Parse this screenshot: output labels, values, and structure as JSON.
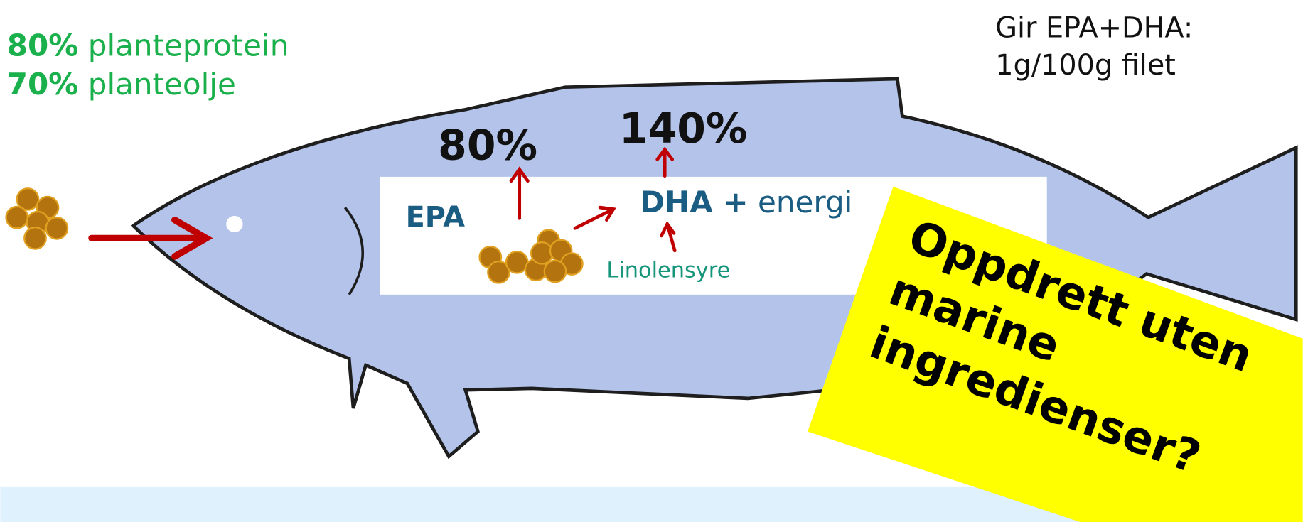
{
  "feed": {
    "protein_percent": "80%",
    "protein_label": "planteprotein",
    "oil_percent": "70%",
    "oil_label": "planteolje"
  },
  "yield": {
    "line1": "Gir EPA+DHA:",
    "line2": "1g/100g filet"
  },
  "epa": {
    "label": "EPA",
    "percent": "80%"
  },
  "dha": {
    "label": "DHA +",
    "extra": "energi",
    "percent": "140%"
  },
  "precursor": "Linolensyre",
  "callout": {
    "lines": [
      "Oppdrett uten",
      "marine",
      "ingredienser?"
    ]
  }
}
